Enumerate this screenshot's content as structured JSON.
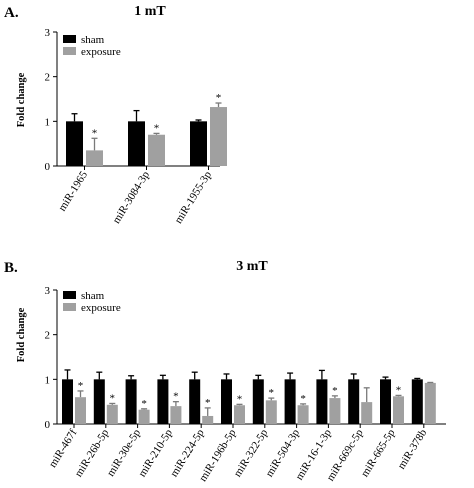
{
  "chart_data": [
    {
      "type": "bar",
      "panel_label": "A.",
      "title": "1 mT",
      "ylabel": "Fold change",
      "xlabel": "",
      "ylim": [
        0,
        3
      ],
      "yticks": [
        "0",
        "1",
        "2",
        "3"
      ],
      "categories": [
        "miR-1965",
        "miR-3084-3p",
        "miR-1955-3p"
      ],
      "series": [
        {
          "name": "sham",
          "color": "#000000",
          "values": [
            1.0,
            1.0,
            1.0
          ],
          "errors": [
            0.17,
            0.24,
            0.03
          ]
        },
        {
          "name": "exposure",
          "color": "#a0a0a0",
          "values": [
            0.35,
            0.7,
            1.32
          ],
          "errors": [
            0.27,
            0.03,
            0.09
          ]
        }
      ],
      "significance_marker": "*",
      "significant": [
        false,
        false,
        false,
        true,
        true,
        true
      ],
      "legend": "top-left",
      "grid": false
    },
    {
      "type": "bar",
      "panel_label": "B.",
      "title": "3 mT",
      "ylabel": "Fold change",
      "xlabel": "",
      "ylim": [
        0,
        3
      ],
      "yticks": [
        "0",
        "1",
        "2",
        "3"
      ],
      "categories": [
        "miR-467f",
        "miR-26b-5p",
        "miR-30e-5p",
        "miR-210-5p",
        "miR-224-5p",
        "miR-196b-5p",
        "miR-322-5p",
        "miR-504-3p",
        "miR-16-1-3p",
        "miR-669c-5p",
        "miR-665-5p",
        "miR-378b"
      ],
      "series": [
        {
          "name": "sham",
          "color": "#000000",
          "values": [
            1.0,
            1.0,
            1.0,
            1.0,
            1.0,
            1.0,
            1.0,
            1.0,
            1.0,
            1.0,
            1.0,
            1.0
          ],
          "errors": [
            0.21,
            0.16,
            0.08,
            0.09,
            0.16,
            0.12,
            0.09,
            0.14,
            0.2,
            0.12,
            0.05,
            0.02
          ]
        },
        {
          "name": "exposure",
          "color": "#a0a0a0",
          "values": [
            0.6,
            0.43,
            0.32,
            0.4,
            0.18,
            0.42,
            0.53,
            0.42,
            0.58,
            0.49,
            0.62,
            0.92
          ],
          "errors": [
            0.14,
            0.03,
            0.02,
            0.1,
            0.18,
            0.02,
            0.05,
            0.03,
            0.05,
            0.32,
            0.02,
            0.01
          ]
        }
      ],
      "significance_marker": "*",
      "significant_exposure": [
        true,
        true,
        true,
        true,
        true,
        true,
        true,
        true,
        true,
        false,
        true,
        false
      ],
      "legend": "top-left",
      "grid": false
    }
  ]
}
